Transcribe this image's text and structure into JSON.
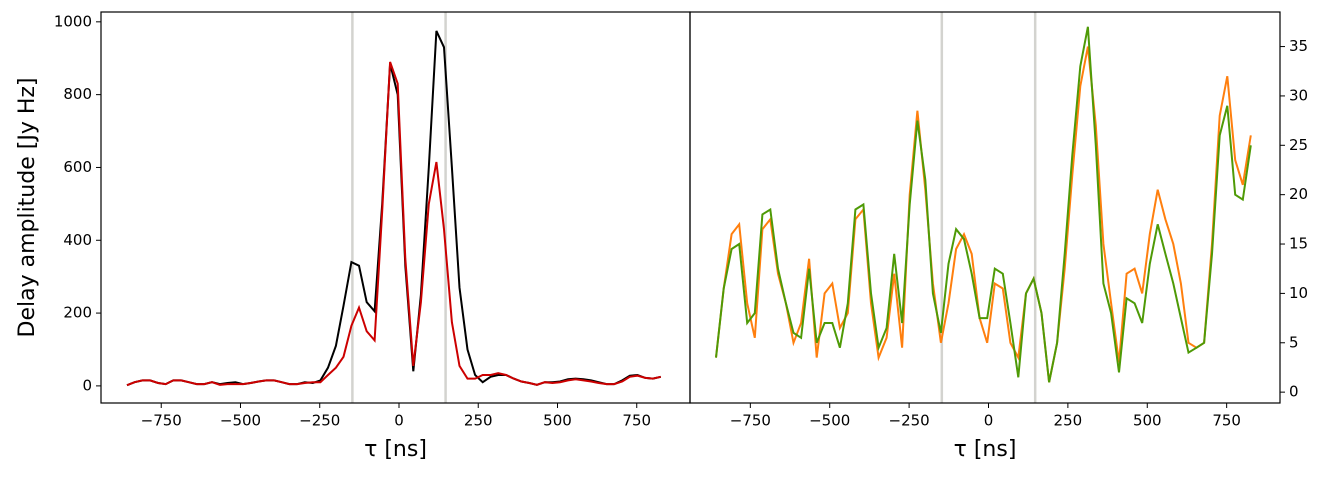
{
  "chart_data": [
    {
      "type": "line",
      "xlabel": "τ [ns]",
      "ylabel": "Delay amplitude [Jy Hz]",
      "xlim": [
        -940,
        918
      ],
      "ylim": [
        -47,
        1027
      ],
      "xticks": [
        {
          "value": -750,
          "label": "−750"
        },
        {
          "value": -500,
          "label": "−500"
        },
        {
          "value": -250,
          "label": "−250"
        },
        0,
        250,
        500,
        750
      ],
      "yticks": [
        0,
        200,
        400,
        600,
        800,
        1000
      ],
      "vlines": [
        -147,
        147
      ],
      "vline_color": "#d3d3cf",
      "x": [
        -858,
        -834,
        -809,
        -785,
        -760,
        -736,
        -712,
        -687,
        -663,
        -638,
        -614,
        -590,
        -565,
        -541,
        -516,
        -492,
        -468,
        -443,
        -419,
        -394,
        -370,
        -346,
        -321,
        -297,
        -272,
        -248,
        -224,
        -199,
        -175,
        -150,
        -126,
        -102,
        -77,
        -53,
        -28,
        -4,
        20,
        45,
        69,
        94,
        118,
        142,
        167,
        191,
        216,
        240,
        264,
        289,
        313,
        338,
        362,
        386,
        411,
        435,
        460,
        484,
        508,
        533,
        557,
        582,
        606,
        630,
        655,
        679,
        704,
        728,
        752,
        777,
        801,
        826
      ],
      "series": [
        {
          "color": "#000000",
          "values": [
            2,
            10,
            15,
            15,
            8,
            5,
            15,
            15,
            10,
            5,
            5,
            10,
            5,
            8,
            10,
            5,
            8,
            12,
            15,
            15,
            10,
            5,
            5,
            10,
            8,
            15,
            50,
            110,
            220,
            340,
            330,
            230,
            205,
            500,
            885,
            800,
            330,
            40,
            250,
            600,
            975,
            930,
            600,
            270,
            100,
            30,
            10,
            25,
            30,
            30,
            20,
            12,
            8,
            3,
            10,
            10,
            12,
            18,
            20,
            18,
            15,
            10,
            5,
            5,
            15,
            28,
            30,
            22,
            20,
            25
          ]
        },
        {
          "color": "#cc0000",
          "values": [
            2,
            10,
            15,
            15,
            8,
            5,
            15,
            15,
            10,
            5,
            5,
            10,
            3,
            5,
            5,
            5,
            8,
            12,
            15,
            15,
            10,
            5,
            5,
            8,
            10,
            10,
            30,
            50,
            80,
            165,
            215,
            150,
            125,
            480,
            890,
            830,
            350,
            55,
            230,
            500,
            615,
            430,
            175,
            55,
            20,
            20,
            30,
            30,
            35,
            30,
            20,
            12,
            8,
            3,
            10,
            8,
            10,
            15,
            18,
            15,
            12,
            8,
            5,
            5,
            12,
            25,
            28,
            22,
            20,
            25
          ]
        }
      ]
    },
    {
      "type": "line",
      "xlabel": "τ [ns]",
      "xlim": [
        -940,
        918
      ],
      "y2lim": [
        -1.1,
        38.5
      ],
      "xticks": [
        {
          "value": -750,
          "label": "−750"
        },
        {
          "value": -500,
          "label": "−500"
        },
        {
          "value": -250,
          "label": "−250"
        },
        0,
        250,
        500,
        750
      ],
      "y2ticks": [
        0,
        5,
        10,
        15,
        20,
        25,
        30,
        35
      ],
      "vlines": [
        -147,
        147
      ],
      "vline_color": "#d3d3cf",
      "x": [
        -858,
        -834,
        -809,
        -785,
        -760,
        -736,
        -712,
        -687,
        -663,
        -638,
        -614,
        -590,
        -565,
        -541,
        -516,
        -492,
        -468,
        -443,
        -419,
        -394,
        -370,
        -346,
        -321,
        -297,
        -272,
        -248,
        -224,
        -199,
        -175,
        -150,
        -126,
        -102,
        -77,
        -53,
        -28,
        -4,
        20,
        45,
        69,
        94,
        118,
        142,
        167,
        191,
        216,
        240,
        264,
        289,
        313,
        338,
        362,
        386,
        411,
        435,
        460,
        484,
        508,
        533,
        557,
        582,
        606,
        630,
        655,
        679,
        704,
        728,
        752,
        777,
        801,
        826
      ],
      "series": [
        {
          "color": "#ff7f0e",
          "axis": "y2",
          "values": [
            3.5,
            10.5,
            16,
            17,
            9,
            5.5,
            16.5,
            17.5,
            12,
            9,
            5,
            7,
            13.5,
            3.5,
            10,
            11,
            6.5,
            8,
            17.5,
            18.5,
            9,
            3.5,
            5.5,
            12,
            4.5,
            20,
            28.5,
            20.5,
            11,
            5,
            9,
            14.5,
            16,
            14,
            7.5,
            5,
            11,
            10.5,
            5,
            3.5,
            10,
            11.5,
            8,
            1,
            5,
            12.5,
            22,
            31,
            35,
            27,
            15,
            9,
            3,
            12,
            12.5,
            10,
            16,
            20.5,
            17.5,
            15,
            11,
            5,
            4.5,
            5,
            15,
            28,
            32,
            23.5,
            21,
            26
          ]
        },
        {
          "color": "#4e9a06",
          "axis": "y2",
          "values": [
            3.5,
            10.5,
            14.5,
            15,
            7,
            8,
            18,
            18.5,
            12.5,
            9,
            6,
            5.5,
            12.5,
            5,
            7,
            7,
            4.5,
            9,
            18.5,
            19,
            10,
            4.5,
            6.5,
            14,
            7,
            19,
            27.5,
            21.5,
            10,
            6,
            13,
            16.5,
            15.5,
            12,
            7.5,
            7.5,
            12.5,
            12,
            7,
            1.5,
            10,
            11.5,
            8,
            1,
            5,
            14,
            24,
            33,
            37,
            25,
            11,
            8,
            2,
            9.5,
            9,
            7,
            13,
            17,
            14,
            11,
            7.5,
            4,
            4.5,
            5,
            14,
            26,
            29,
            20,
            19.5,
            25
          ]
        }
      ]
    }
  ]
}
